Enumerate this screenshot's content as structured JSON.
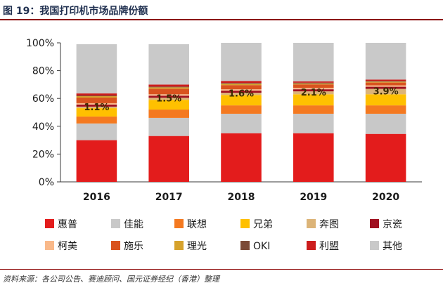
{
  "figure": {
    "title": "图 19：我国打印机市场品牌份额",
    "source": "资料来源：各公司公告、赛迪顾问、国元证券经纪（香港）整理"
  },
  "chart_data": {
    "type": "bar",
    "stacked": true,
    "title": "",
    "xlabel": "",
    "ylabel": "",
    "ylim": [
      0,
      100
    ],
    "y_ticks": [
      "0%",
      "20%",
      "40%",
      "60%",
      "80%",
      "100%"
    ],
    "categories": [
      "2016",
      "2017",
      "2018",
      "2019",
      "2020"
    ],
    "series": [
      {
        "name": "惠普",
        "color": "#e31c1c",
        "values": [
          30,
          33,
          35,
          35,
          34.5
        ]
      },
      {
        "name": "佳能",
        "color": "#c8c8c8",
        "values": [
          12,
          13,
          14,
          14,
          14.5
        ]
      },
      {
        "name": "联想",
        "color": "#f47920",
        "values": [
          5,
          6,
          6,
          6,
          6
        ]
      },
      {
        "name": "兄弟",
        "color": "#ffc000",
        "values": [
          6,
          7,
          7.5,
          8,
          8
        ]
      },
      {
        "name": "奔图",
        "color": "#dcb478",
        "values": [
          1.1,
          1.5,
          1.6,
          2.1,
          3.9
        ]
      },
      {
        "name": "京瓷",
        "color": "#a01020",
        "values": [
          1.5,
          1.5,
          1.5,
          1.5,
          1.5
        ]
      },
      {
        "name": "柯美",
        "color": "#f9b98a",
        "values": [
          1,
          1,
          1,
          1,
          1
        ]
      },
      {
        "name": "施乐",
        "color": "#d9531e",
        "values": [
          4,
          4,
          3,
          2.5,
          2
        ]
      },
      {
        "name": "理光",
        "color": "#d6a22c",
        "values": [
          1,
          1,
          1,
          0.7,
          0.7
        ]
      },
      {
        "name": "OKI",
        "color": "#7b4a36",
        "values": [
          0.5,
          0.5,
          0.5,
          0.5,
          0.5
        ]
      },
      {
        "name": "利盟",
        "color": "#cc1d1d",
        "values": [
          1.5,
          1.5,
          1.5,
          1,
          1
        ]
      },
      {
        "name": "其他",
        "color": "#c9c9c9",
        "values": [
          35.4,
          29,
          27.4,
          27.7,
          26.4
        ]
      }
    ],
    "annotations": [
      {
        "category": "2016",
        "series": "奔图",
        "text": "1.1%"
      },
      {
        "category": "2017",
        "series": "奔图",
        "text": "1.5%"
      },
      {
        "category": "2018",
        "series": "奔图",
        "text": "1.6%"
      },
      {
        "category": "2019",
        "series": "奔图",
        "text": "2.1%"
      },
      {
        "category": "2020",
        "series": "奔图",
        "text": "3.9%"
      }
    ],
    "legend": {
      "position": "bottom",
      "columns": 6
    },
    "grid": false
  }
}
